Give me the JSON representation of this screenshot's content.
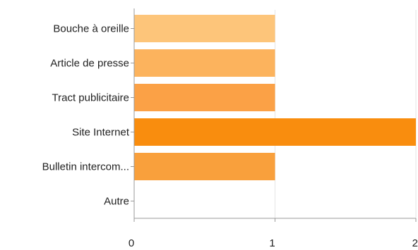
{
  "chart_data": {
    "type": "bar",
    "orientation": "horizontal",
    "categories": [
      "Bouche à oreille",
      "Article de presse",
      "Tract publicitaire",
      "Site Internet",
      "Bulletin intercom...",
      "Autre"
    ],
    "values": [
      1,
      1,
      1,
      2,
      1,
      0
    ],
    "colors": [
      "#fdc57a",
      "#fcb35d",
      "#fba146",
      "#f98d0e",
      "#f9a03c",
      "#f9a03c"
    ],
    "xlim": [
      0,
      2
    ],
    "xticks": [
      "0",
      "1",
      "2"
    ],
    "grid": true,
    "axis_color": "#999999",
    "grid_color": "#e6e6e6",
    "legend": "none"
  }
}
